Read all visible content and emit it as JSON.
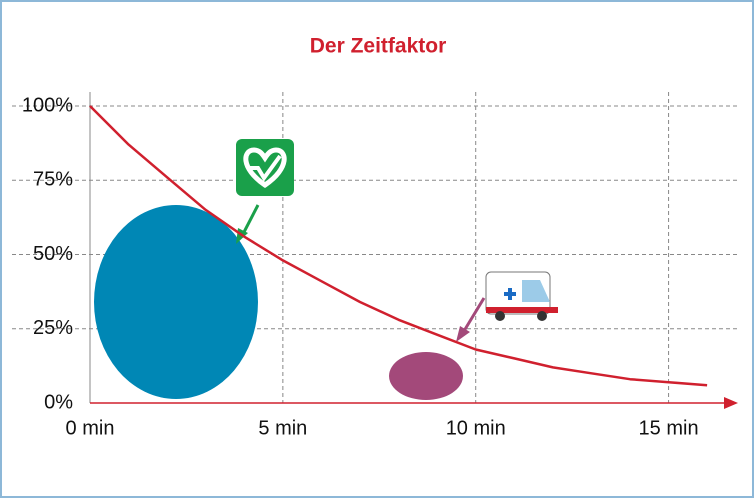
{
  "chart_data": {
    "type": "line",
    "title": "Der Zeitfaktor",
    "x": [
      0,
      1,
      2,
      3,
      4,
      5,
      6,
      7,
      8,
      9,
      10,
      11,
      12,
      13,
      14,
      15,
      16
    ],
    "values": [
      100,
      87,
      76,
      65,
      56,
      48,
      41,
      34,
      28,
      23,
      18,
      15,
      12,
      10,
      8,
      7,
      6
    ],
    "color": "#d0202e",
    "xlim": [
      0,
      16.8
    ],
    "xticks": [
      {
        "value": 0,
        "label": "0 min"
      },
      {
        "value": 5,
        "label": "5 min"
      },
      {
        "value": 10,
        "label": "10 min"
      },
      {
        "value": 15,
        "label": "15 min"
      }
    ],
    "ylim": [
      0,
      100
    ],
    "yticks": [
      {
        "value": 0,
        "label": "0%"
      },
      {
        "value": 25,
        "label": "25%"
      },
      {
        "value": 50,
        "label": "50%"
      },
      {
        "value": 75,
        "label": "75%"
      },
      {
        "value": 100,
        "label": "100%"
      }
    ],
    "grid": true
  }
}
